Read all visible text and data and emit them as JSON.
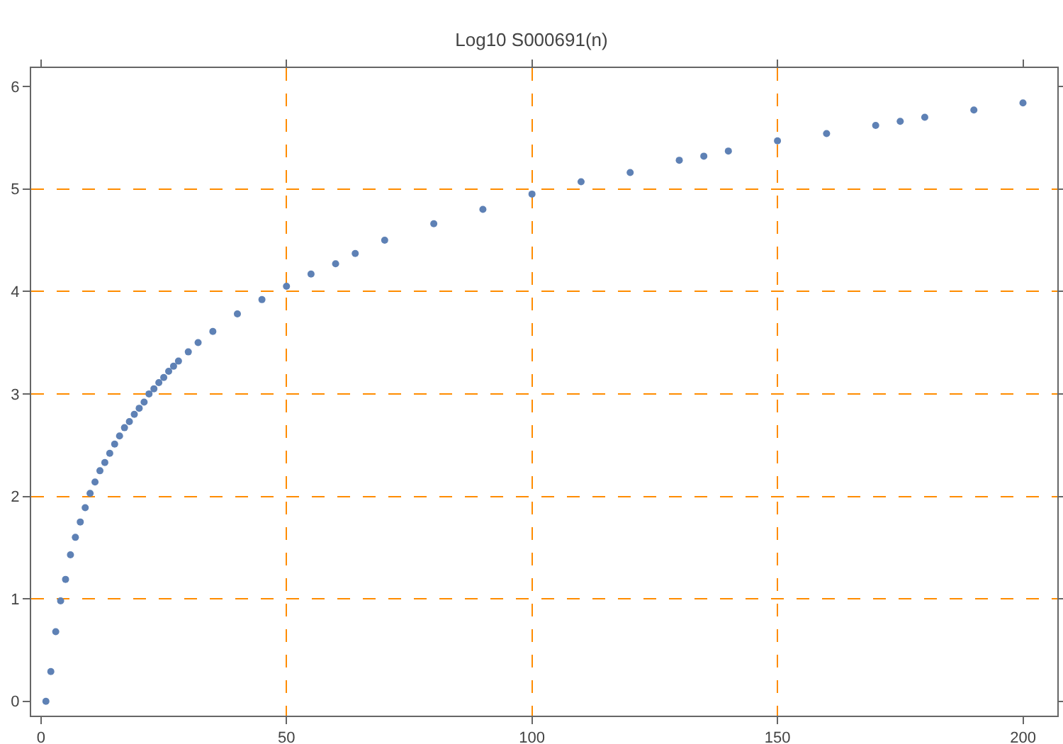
{
  "chart_data": {
    "type": "scatter",
    "title": "Log10 S000691(n)",
    "x": [
      1,
      2,
      3,
      4,
      5,
      6,
      7,
      8,
      9,
      10,
      11,
      12,
      13,
      14,
      15,
      16,
      17,
      18,
      19,
      20,
      21,
      22,
      23,
      24,
      25,
      26,
      27,
      28,
      30,
      32,
      35,
      40,
      45,
      50,
      55,
      60,
      64,
      70,
      80,
      90,
      100,
      110,
      120,
      130,
      135,
      140,
      150,
      160,
      170,
      175,
      180,
      190,
      200
    ],
    "series": [
      {
        "color": "#5e81b5",
        "values": [
          0,
          0.29,
          0.68,
          0.98,
          1.19,
          1.43,
          1.6,
          1.75,
          1.89,
          2.03,
          2.14,
          2.25,
          2.33,
          2.42,
          2.51,
          2.59,
          2.67,
          2.73,
          2.8,
          2.86,
          2.92,
          3.0,
          3.05,
          3.11,
          3.16,
          3.22,
          3.27,
          3.32,
          3.41,
          3.5,
          3.61,
          3.78,
          3.92,
          4.05,
          4.17,
          4.27,
          4.37,
          4.5,
          4.66,
          4.8,
          4.95,
          5.07,
          5.16,
          5.28,
          5.32,
          5.37,
          5.47,
          5.54,
          5.62,
          5.66,
          5.7,
          5.77,
          5.84
        ]
      }
    ],
    "xlim": [
      -2,
      207
    ],
    "ylim": [
      -0.14,
      6.18
    ],
    "xticks": [
      0,
      50,
      100,
      150,
      200
    ],
    "yticks": [
      0,
      1,
      2,
      3,
      4,
      5,
      6
    ],
    "grid": true,
    "marker": "circle"
  }
}
